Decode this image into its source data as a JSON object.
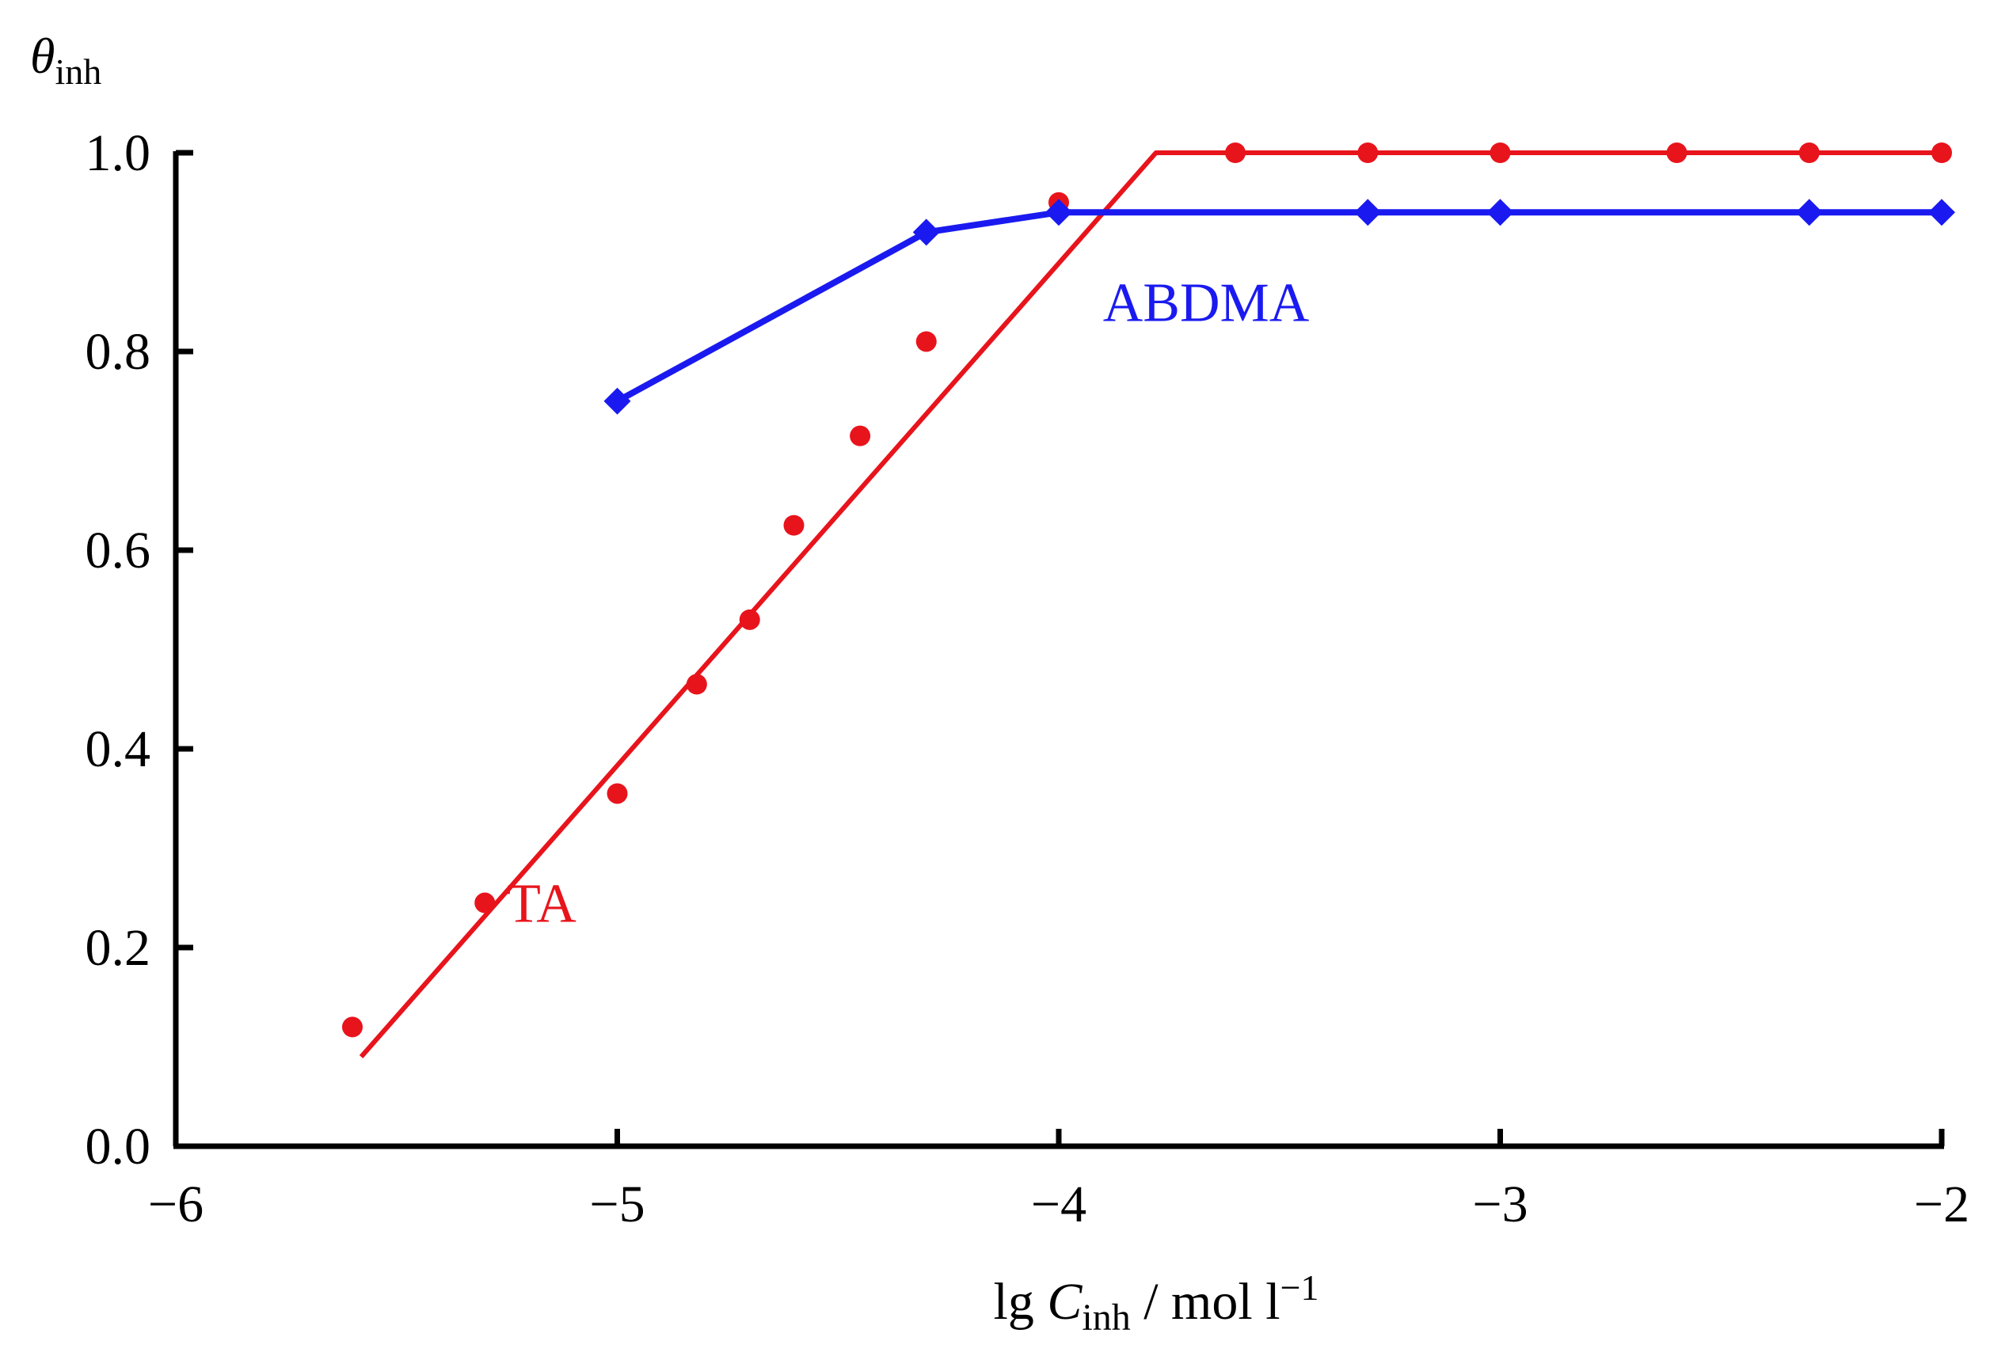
{
  "chart_data": {
    "type": "scatter",
    "ylabel_parts": {
      "symbol": "θ",
      "subscript": "inh"
    },
    "xlabel_parts": {
      "prefix": "lg ",
      "symbol": "C",
      "subscript": "inh",
      "suffix": " / mol l",
      "superscript": "−1"
    },
    "xlim": [
      -6,
      -2
    ],
    "ylim": [
      0,
      1
    ],
    "xticks": [
      -6,
      -5,
      -4,
      -3,
      -2
    ],
    "xtick_labels": [
      "−6",
      "−5",
      "−4",
      "−3",
      "−2"
    ],
    "yticks": [
      0,
      0.2,
      0.4,
      0.6,
      0.8,
      1.0
    ],
    "ytick_labels": [
      "0.0",
      "0.2",
      "0.4",
      "0.6",
      "0.8",
      "1.0"
    ],
    "grid": false,
    "series": [
      {
        "name": "TA",
        "color": "#e8141c",
        "marker": "circle",
        "points": [
          {
            "x": -5.6,
            "y": 0.12
          },
          {
            "x": -5.3,
            "y": 0.245
          },
          {
            "x": -5.0,
            "y": 0.355
          },
          {
            "x": -4.82,
            "y": 0.465
          },
          {
            "x": -4.7,
            "y": 0.53
          },
          {
            "x": -4.6,
            "y": 0.625
          },
          {
            "x": -4.45,
            "y": 0.715
          },
          {
            "x": -4.3,
            "y": 0.81
          },
          {
            "x": -4.0,
            "y": 0.95
          },
          {
            "x": -3.6,
            "y": 1.0
          },
          {
            "x": -3.3,
            "y": 1.0
          },
          {
            "x": -3.0,
            "y": 1.0
          },
          {
            "x": -2.6,
            "y": 1.0
          },
          {
            "x": -2.3,
            "y": 1.0
          },
          {
            "x": -2.0,
            "y": 1.0
          }
        ],
        "fit_line": [
          {
            "x": -5.58,
            "y": 0.09
          },
          {
            "x": -3.78,
            "y": 1.0
          },
          {
            "x": -2.0,
            "y": 1.0
          }
        ]
      },
      {
        "name": "ABDMA",
        "color": "#1a1af0",
        "marker": "diamond",
        "points": [
          {
            "x": -5.0,
            "y": 0.75
          },
          {
            "x": -4.3,
            "y": 0.92
          },
          {
            "x": -4.0,
            "y": 0.94
          },
          {
            "x": -3.3,
            "y": 0.94
          },
          {
            "x": -3.0,
            "y": 0.94
          },
          {
            "x": -2.3,
            "y": 0.94
          },
          {
            "x": -2.0,
            "y": 0.94
          }
        ]
      }
    ],
    "annotations": [
      {
        "text": "TA",
        "series": "TA",
        "x": -5.25,
        "y": 0.245
      },
      {
        "text": "ABDMA",
        "series": "ABDMA",
        "x": -3.9,
        "y": 0.85
      }
    ]
  }
}
